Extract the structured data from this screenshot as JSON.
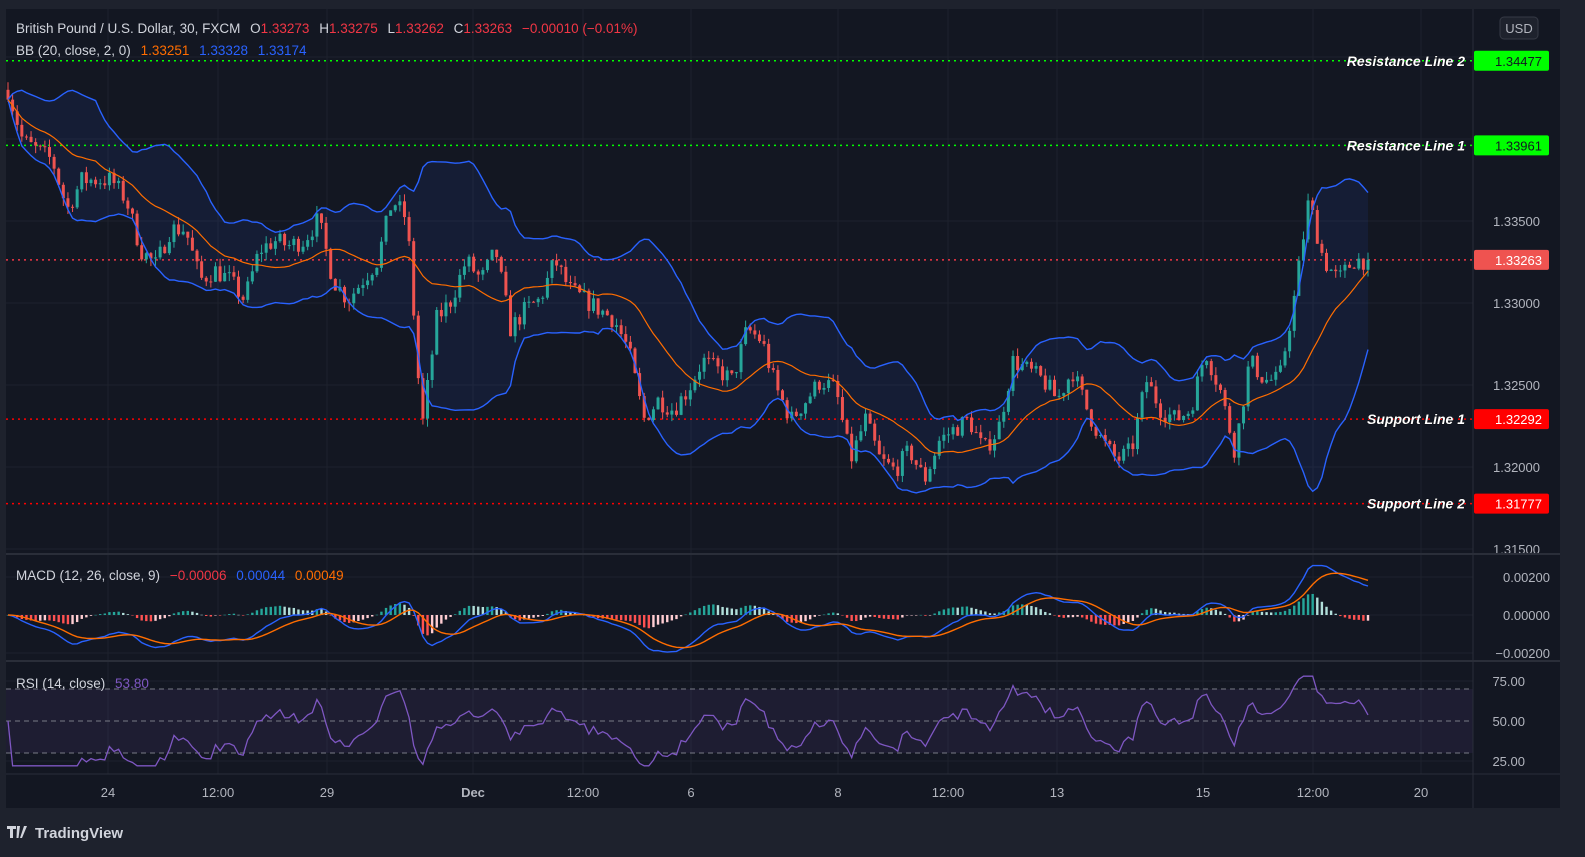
{
  "header": {
    "symbol": "British Pound / U.S. Dollar, 30, FXCM",
    "o_label": "O",
    "o": "1.33273",
    "h_label": "H",
    "h": "1.33275",
    "l_label": "L",
    "l": "1.33262",
    "c_label": "C",
    "c": "1.33263",
    "change": "−0.00010 (−0.01%)"
  },
  "bb_legend": {
    "label": "BB (20, close, 2, 0)",
    "basis": "1.33251",
    "upper": "1.33328",
    "lower": "1.33174"
  },
  "macd_legend": {
    "label": "MACD (12, 26, close, 9)",
    "hist": "−0.00006",
    "macd": "0.00044",
    "signal": "0.00049"
  },
  "rsi_legend": {
    "label": "RSI (14, close)",
    "value": "53.80"
  },
  "currency_button": "USD",
  "brand": "TradingView",
  "colors": {
    "up": "#26a69a",
    "down": "#ef5350",
    "bb_band": "#2962ff",
    "bb_basis": "#ff6d00",
    "macd": "#2962ff",
    "signal": "#ff6d00",
    "rsi": "#7e57c2",
    "resistance": "#00ff00",
    "support": "#ff0000",
    "last_price": "#f23645"
  },
  "levels": [
    {
      "label": "Resistance Line 2",
      "price": 1.34477,
      "price_text": "1.34477",
      "kind": "resistance"
    },
    {
      "label": "Resistance Line 1",
      "price": 1.33961,
      "price_text": "1.33961",
      "kind": "resistance"
    },
    {
      "label": "Support Line 1",
      "price": 1.32292,
      "price_text": "1.32292",
      "kind": "support"
    },
    {
      "label": "Support Line 2",
      "price": 1.31777,
      "price_text": "1.31777",
      "kind": "support"
    }
  ],
  "last_price": {
    "price": 1.33263,
    "text": "1.33263"
  },
  "chart_data": [
    {
      "type": "candlestick",
      "title": "British Pound / U.S. Dollar, 30, FXCM",
      "ylim": [
        1.3145,
        1.3475
      ],
      "y_ticks": [
        "1.33500",
        "1.33000",
        "1.32500",
        "1.32000",
        "1.31500"
      ],
      "x_ticks": [
        "24",
        "12:00",
        "29",
        "Dec",
        "12:00",
        "6",
        "8",
        "12:00",
        "13",
        "15",
        "12:00",
        "20"
      ],
      "grid": true,
      "approx_close_path": [
        1.343,
        1.3399,
        1.3393,
        1.3387,
        1.3357,
        1.3375,
        1.3375,
        1.3375,
        1.3363,
        1.3332,
        1.3323,
        1.3345,
        1.3345,
        1.3314,
        1.332,
        1.3314,
        1.3302,
        1.3332,
        1.3338,
        1.3335,
        1.3338,
        1.3351,
        1.3314,
        1.3302,
        1.3314,
        1.3326,
        1.3363,
        1.3351,
        1.3223,
        1.329,
        1.3302,
        1.3326,
        1.3314,
        1.3332,
        1.3284,
        1.3296,
        1.3302,
        1.3326,
        1.3308,
        1.3302,
        1.3296,
        1.329,
        1.3271,
        1.3229,
        1.3241,
        1.3235,
        1.3247,
        1.3265,
        1.3259,
        1.3253,
        1.3284,
        1.3277,
        1.3247,
        1.3229,
        1.3241,
        1.3253,
        1.3247,
        1.3204,
        1.3229,
        1.3204,
        1.3198,
        1.321,
        1.3192,
        1.3216,
        1.3223,
        1.3229,
        1.321,
        1.3223,
        1.3265,
        1.3259,
        1.3253,
        1.3241,
        1.3259,
        1.3235,
        1.3216,
        1.3204,
        1.321,
        1.3253,
        1.3235,
        1.3229,
        1.3235,
        1.3271,
        1.3247,
        1.321,
        1.3265,
        1.3253,
        1.3253,
        1.3302,
        1.3363,
        1.3326,
        1.3314,
        1.3326,
        1.33263
      ],
      "indicators": [
        "BB (20, close, 2, 0)"
      ]
    },
    {
      "type": "line",
      "title": "MACD (12, 26, close, 9)",
      "ylim": [
        -0.0025,
        0.0025
      ],
      "y_ticks": [
        "0.00200",
        "0.00000",
        "−0.00200"
      ],
      "series": [
        {
          "name": "MACD",
          "last": 0.00044
        },
        {
          "name": "Signal",
          "last": 0.00049
        },
        {
          "name": "Histogram",
          "last": -6e-05
        }
      ]
    },
    {
      "type": "line",
      "title": "RSI (14, close)",
      "ylim": [
        20,
        80
      ],
      "y_ticks": [
        "75.00",
        "50.00",
        "25.00"
      ],
      "bands": [
        30,
        50,
        70
      ],
      "series": [
        {
          "name": "RSI",
          "last": 53.8
        }
      ]
    }
  ]
}
